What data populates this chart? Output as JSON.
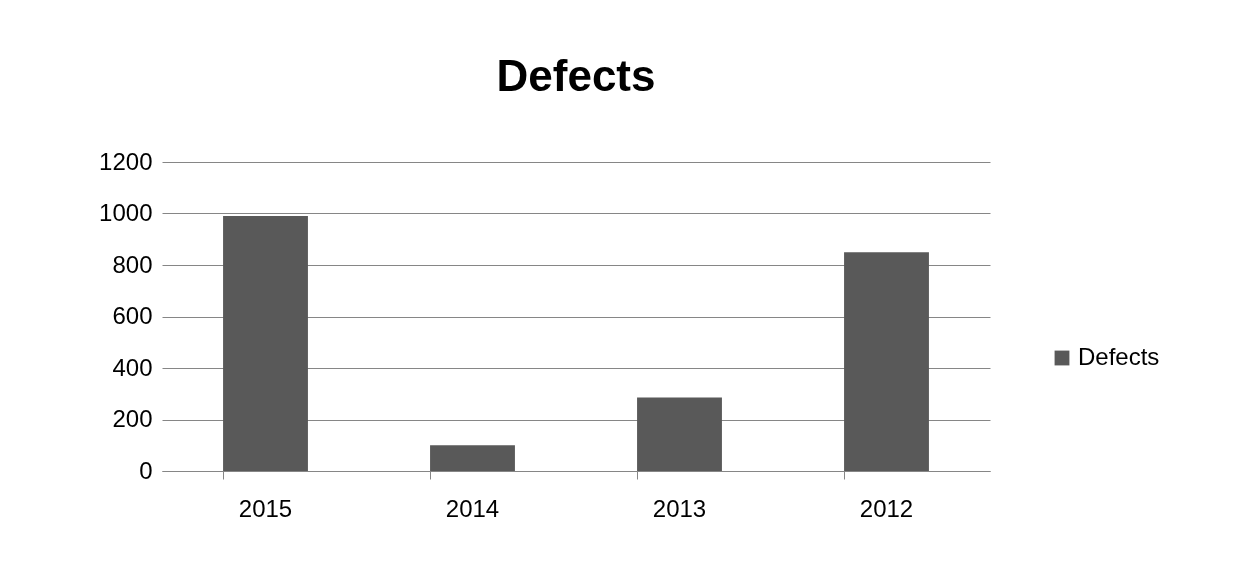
{
  "chart_data": {
    "type": "bar",
    "title": "Defects",
    "categories": [
      "2015",
      "2014",
      "2013",
      "2012"
    ],
    "series": [
      {
        "name": "Defects",
        "color": "#595959",
        "values": [
          990,
          100,
          285,
          850
        ]
      }
    ],
    "ylim": [
      0,
      1200
    ],
    "yticks": [
      0,
      200,
      400,
      600,
      800,
      1000,
      1200
    ],
    "grid": "y",
    "legend": "right"
  }
}
